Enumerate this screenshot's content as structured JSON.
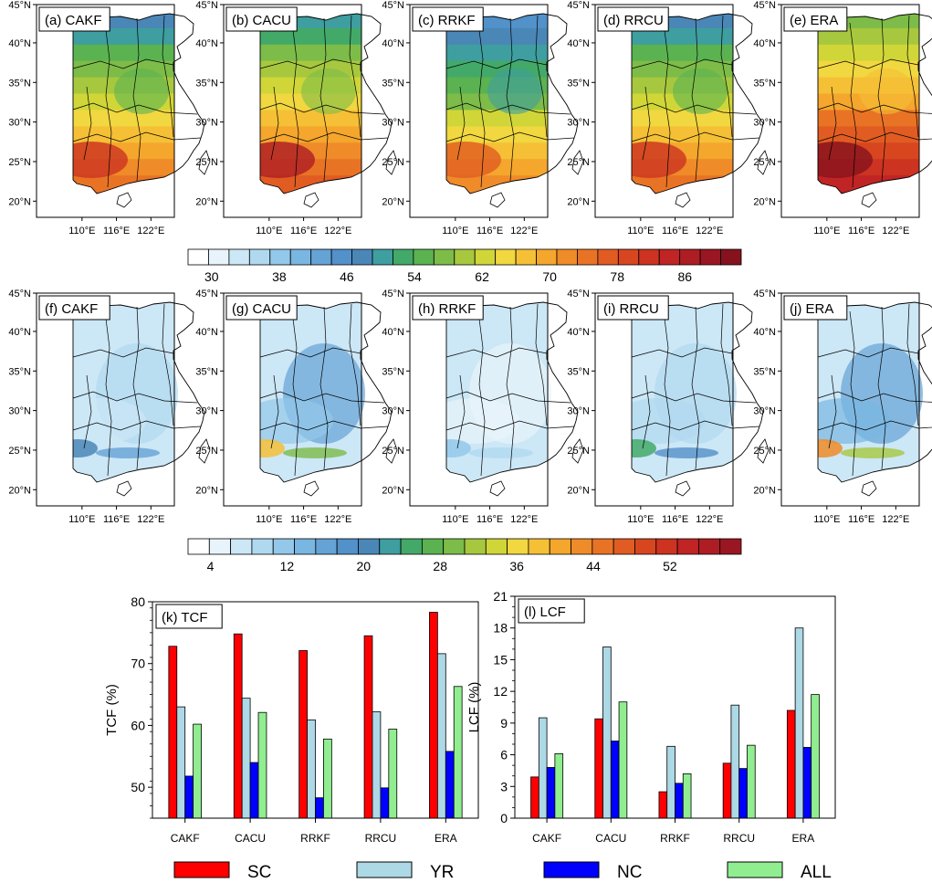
{
  "colors": {
    "SC": "#ff0000",
    "YR": "#add8e6",
    "NC": "#0000ff",
    "ALL": "#90ee90"
  },
  "maps": {
    "lat_labels": [
      "20°N",
      "25°N",
      "30°N",
      "35°N",
      "40°N",
      "45°N"
    ],
    "lon_labels": [
      "110°E",
      "116°E",
      "122°E"
    ],
    "rows": [
      {
        "field": "TCF",
        "panels": [
          {
            "label": "(a) CAKF",
            "intensity": 0.55
          },
          {
            "label": "(b) CACU",
            "intensity": 0.62
          },
          {
            "label": "(c) RRKF",
            "intensity": 0.45
          },
          {
            "label": "(d) RRCU",
            "intensity": 0.55
          },
          {
            "label": "(e) ERA",
            "intensity": 0.8
          }
        ],
        "colorbar_labels": [
          "30",
          "38",
          "46",
          "54",
          "62",
          "70",
          "78",
          "86"
        ]
      },
      {
        "field": "LCF",
        "panels": [
          {
            "label": "(f) CAKF",
            "intensity": 0.25
          },
          {
            "label": "(g) CACU",
            "intensity": 0.5
          },
          {
            "label": "(h) RRKF",
            "intensity": 0.12
          },
          {
            "label": "(i) RRCU",
            "intensity": 0.3
          },
          {
            "label": "(j) ERA",
            "intensity": 0.55
          }
        ],
        "colorbar_labels": [
          "4",
          "12",
          "20",
          "28",
          "36",
          "44",
          "52"
        ]
      }
    ]
  },
  "chart_data": [
    {
      "type": "bar",
      "title": "(k) TCF",
      "xlabel": "",
      "ylabel": "TCF (%)",
      "ylim": [
        45,
        80
      ],
      "yticks": [
        50,
        60,
        70,
        80
      ],
      "categories": [
        "CAKF",
        "CACU",
        "RRKF",
        "RRCU",
        "ERA"
      ],
      "series": [
        {
          "name": "SC",
          "values": [
            72.8,
            74.8,
            72.1,
            74.5,
            78.3
          ]
        },
        {
          "name": "YR",
          "values": [
            63.0,
            64.4,
            60.9,
            62.2,
            71.6
          ]
        },
        {
          "name": "NC",
          "values": [
            51.8,
            54.0,
            48.3,
            49.9,
            55.8
          ]
        },
        {
          "name": "ALL",
          "values": [
            60.2,
            62.1,
            57.8,
            59.4,
            66.3
          ]
        }
      ]
    },
    {
      "type": "bar",
      "title": "(l) LCF",
      "xlabel": "",
      "ylabel": "LCF (%)",
      "ylim": [
        0,
        21
      ],
      "yticks": [
        0,
        3,
        6,
        9,
        12,
        15,
        18,
        21
      ],
      "categories": [
        "CAKF",
        "CACU",
        "RRKF",
        "RRCU",
        "ERA"
      ],
      "series": [
        {
          "name": "SC",
          "values": [
            3.9,
            9.4,
            2.5,
            5.2,
            10.2
          ]
        },
        {
          "name": "YR",
          "values": [
            9.5,
            16.2,
            6.8,
            10.7,
            18.0
          ]
        },
        {
          "name": "NC",
          "values": [
            4.8,
            7.3,
            3.3,
            4.7,
            6.7
          ]
        },
        {
          "name": "ALL",
          "values": [
            6.1,
            11.0,
            4.2,
            6.9,
            11.7
          ]
        }
      ]
    }
  ],
  "legend": {
    "placement": "bottom",
    "items": [
      "SC",
      "YR",
      "NC",
      "ALL"
    ]
  }
}
